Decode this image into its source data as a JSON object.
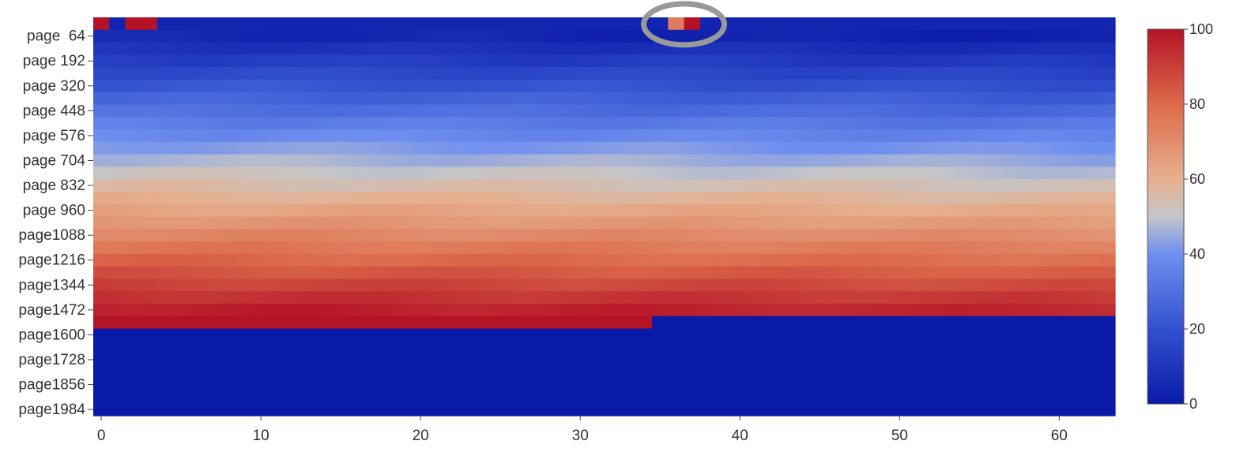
{
  "chart_data": {
    "type": "heatmap",
    "title": "",
    "xlabel": "",
    "ylabel": "",
    "x_range": [
      0,
      63
    ],
    "x_ticks": [
      "0",
      "10",
      "20",
      "30",
      "40",
      "50",
      "60"
    ],
    "y_categories_labeled": [
      "page  64",
      "page 192",
      "page 320",
      "page 448",
      "page 576",
      "page 704",
      "page 832",
      "page 960",
      "page1088",
      "page1216",
      "page1344",
      "page1472",
      "page1600",
      "page1728",
      "page1856",
      "page1984"
    ],
    "rows": 32,
    "columns": 64,
    "colorscale": "coolwarm (blue 0 → grey 50 → red 100)",
    "colorbar": {
      "range": [
        0,
        100
      ],
      "ticks": [
        "0",
        "20",
        "40",
        "60",
        "80",
        "100"
      ]
    },
    "pattern": {
      "row0_high_cells": {
        "columns": [
          0,
          2,
          3,
          36,
          37
        ],
        "values": [
          100,
          100,
          100,
          75,
          100
        ]
      },
      "gradient_rows": {
        "from_row": 1,
        "to_row": 23,
        "value_start": 5,
        "value_end": 98
      },
      "row24": {
        "columns_0_to_34": 100,
        "columns_35_to_63": 0
      },
      "rows_25_to_31": 0
    },
    "annotation": {
      "type": "ellipse",
      "shape": "circle-outline",
      "color": "#999999",
      "around_columns": [
        36,
        37
      ],
      "row": 0
    }
  }
}
